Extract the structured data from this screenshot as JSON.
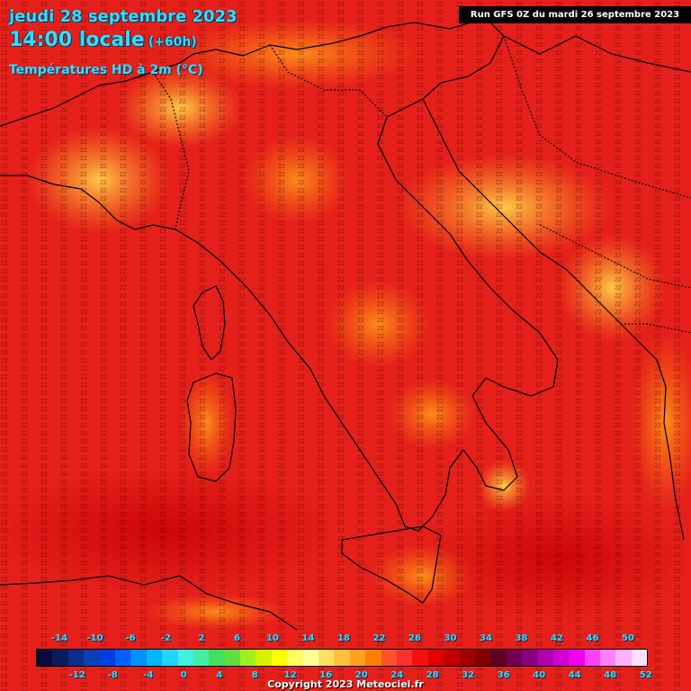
{
  "header": {
    "date_line": "jeudi 28 septembre 2023",
    "time_line": "14:00 locale",
    "offset": "(+60h)",
    "parameter": "Températures HD à 2m (°C)",
    "run_info": "Run GFS 0Z du mardi 26 septembre 2023"
  },
  "legend": {
    "unit": "°C",
    "top_labels": [
      "-14",
      "-10",
      "-6",
      "-2",
      "2",
      "6",
      "10",
      "14",
      "18",
      "22",
      "26",
      "30",
      "34",
      "38",
      "42",
      "46",
      "50"
    ],
    "bottom_labels": [
      "-12",
      "-8",
      "-4",
      "0",
      "4",
      "8",
      "12",
      "16",
      "20",
      "24",
      "28",
      "32",
      "36",
      "40",
      "44",
      "48",
      "52"
    ],
    "colors": [
      "#0a0a3a",
      "#0a1a5e",
      "#0a2f8a",
      "#0a3fb5",
      "#0040e0",
      "#0060ff",
      "#0090ff",
      "#00b8ff",
      "#20d8ff",
      "#40f0e0",
      "#40f0a0",
      "#40e060",
      "#60e040",
      "#a0f020",
      "#d8f000",
      "#ffff00",
      "#ffff60",
      "#ffff99",
      "#ffe060",
      "#ffc040",
      "#ffa020",
      "#ff8000",
      "#ff5030",
      "#ff3030",
      "#f51010",
      "#e00000",
      "#c00000",
      "#a00000",
      "#800000",
      "#600020",
      "#700050",
      "#8a0080",
      "#b000b0",
      "#d000d0",
      "#f000f0",
      "#ff40ff",
      "#ff80ff",
      "#ffb0ff",
      "#ffe0ff"
    ]
  },
  "copyright": "Copyright 2023 Meteociel.fr"
}
